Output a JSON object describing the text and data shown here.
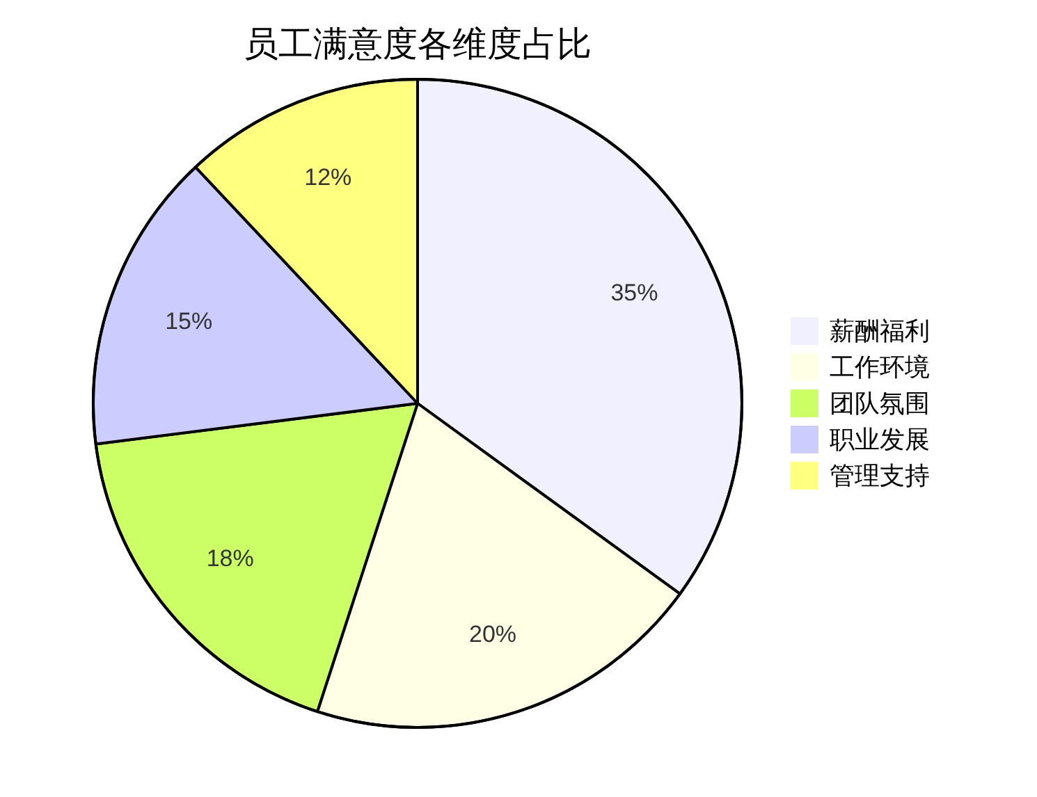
{
  "chart_data": {
    "type": "pie",
    "title": "员工满意度各维度占比",
    "categories": [
      "薪酬福利",
      "工作环境",
      "团队氛围",
      "职业发展",
      "管理支持"
    ],
    "values": [
      35,
      20,
      18,
      15,
      12
    ],
    "colors": [
      "#f0f0ff",
      "#ffffe6",
      "#ccff66",
      "#ccccff",
      "#ffff80"
    ],
    "value_labels": [
      "35%",
      "20%",
      "18%",
      "15%",
      "12%"
    ],
    "legend": "right"
  }
}
